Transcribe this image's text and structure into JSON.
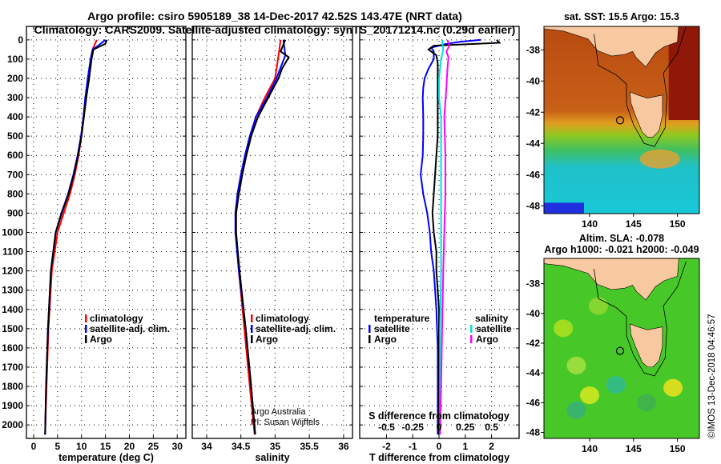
{
  "header": {
    "title_line1": "Argo profile: csiro 5905189_38 14-Dec-2017 42.52S 143.47E (NRT data)",
    "title_line2": "Climatology: CARS2009. Satellite-adjusted climatology: synTS_20171214.nc (0.29d earlier)"
  },
  "credit": {
    "line1": "Argo Australia",
    "line2": "PI: Susan Wijffels"
  },
  "watermark": "©IMOS 13-Dec-2018 04:46:57",
  "colors": {
    "climatology": "#ff0000",
    "satellite": "#0000ff",
    "argo": "#000000",
    "sal_satellite": "#00e0e0",
    "sal_argo": "#ff00ff",
    "land": "#f8c8a0"
  },
  "chart_data": [
    {
      "type": "line",
      "id": "temperature",
      "xlabel": "temperature (deg C)",
      "ylabel": "depth",
      "xlim": [
        -1.5,
        31.8
      ],
      "ylim": [
        2070,
        -70
      ],
      "xticks": [
        0,
        5,
        10,
        15,
        20,
        25,
        30
      ],
      "yticks": [
        0,
        100,
        200,
        300,
        400,
        500,
        600,
        700,
        800,
        900,
        1000,
        1100,
        1200,
        1300,
        1400,
        1500,
        1600,
        1700,
        1800,
        1900,
        2000
      ],
      "grid": true,
      "legend": {
        "placement": "lower-center",
        "entries": [
          "climatology",
          "satellite-adj. clim.",
          "Argo"
        ]
      },
      "series": [
        {
          "name": "climatology",
          "color": "#ff0000",
          "depth": [
            0,
            50,
            100,
            200,
            300,
            400,
            500,
            600,
            700,
            800,
            900,
            1000,
            1200,
            1500,
            1800,
            2050
          ],
          "values": [
            13.2,
            12.3,
            12.0,
            11.4,
            11.0,
            10.5,
            10.0,
            9.4,
            8.6,
            7.6,
            6.3,
            5.0,
            3.8,
            3.1,
            2.7,
            2.4
          ]
        },
        {
          "name": "satellite-adj. clim.",
          "color": "#0000ff",
          "depth": [
            0,
            30,
            50,
            100,
            200,
            300,
            400,
            500,
            600,
            700,
            800,
            900,
            1000,
            1200,
            1500,
            1800,
            2050
          ],
          "values": [
            15.0,
            13.5,
            12.3,
            11.9,
            11.3,
            10.8,
            10.4,
            9.9,
            9.2,
            8.3,
            7.2,
            5.8,
            4.6,
            3.6,
            3.0,
            2.6,
            2.4
          ]
        },
        {
          "name": "Argo",
          "color": "#000000",
          "depth": [
            0,
            20,
            50,
            100,
            200,
            300,
            400,
            500,
            600,
            700,
            800,
            900,
            1000,
            1200,
            1500,
            1800,
            2050
          ],
          "values": [
            15.3,
            15.0,
            12.5,
            12.1,
            11.6,
            11.0,
            10.5,
            10.0,
            9.3,
            8.4,
            7.3,
            5.9,
            4.6,
            3.6,
            3.0,
            2.6,
            2.4
          ]
        }
      ]
    },
    {
      "type": "line",
      "id": "salinity",
      "xlabel": "salinity",
      "ylabel": "depth",
      "xlim": [
        33.79,
        36.13
      ],
      "ylim": [
        2070,
        -70
      ],
      "xticks": [
        34,
        34.5,
        35,
        35.5,
        36
      ],
      "xticklabels": [
        "34",
        "34.5",
        "35",
        "35.5",
        "36"
      ],
      "grid": true,
      "legend": {
        "placement": "lower-center",
        "entries": [
          "climatology",
          "satellite-adj. clim.",
          "Argo"
        ]
      },
      "series": [
        {
          "name": "climatology",
          "color": "#ff0000",
          "depth": [
            0,
            80,
            200,
            300,
            400,
            500,
            600,
            700,
            800,
            900,
            1000,
            1200,
            1500,
            1800,
            2050
          ],
          "values": [
            35.08,
            35.05,
            35.0,
            34.85,
            34.72,
            34.65,
            34.58,
            34.52,
            34.47,
            34.43,
            34.43,
            34.47,
            34.55,
            34.63,
            34.7
          ]
        },
        {
          "name": "satellite-adj. clim.",
          "color": "#0000ff",
          "depth": [
            0,
            80,
            200,
            300,
            400,
            500,
            600,
            700,
            800,
            900,
            1000,
            1200,
            1500,
            1800,
            2050
          ],
          "values": [
            35.12,
            35.15,
            35.02,
            34.88,
            34.72,
            34.63,
            34.56,
            34.5,
            34.45,
            34.42,
            34.42,
            34.47,
            34.57,
            34.65,
            34.71
          ]
        },
        {
          "name": "Argo",
          "color": "#000000",
          "depth": [
            0,
            60,
            90,
            150,
            200,
            300,
            400,
            500,
            600,
            700,
            800,
            900,
            1000,
            1200,
            1500,
            1800,
            2050
          ],
          "values": [
            35.15,
            35.08,
            35.2,
            35.1,
            35.05,
            34.9,
            34.75,
            34.65,
            34.58,
            34.52,
            34.47,
            34.43,
            34.43,
            34.48,
            34.57,
            34.65,
            34.71
          ]
        }
      ]
    },
    {
      "type": "line",
      "id": "difference",
      "xlabel": "T difference from climatology",
      "x2label": "S difference from climatology",
      "ylabel": "depth",
      "xlim": [
        -3.02,
        3.05
      ],
      "ylim": [
        2070,
        -70
      ],
      "xticks": [
        -2,
        -1,
        0,
        1,
        2
      ],
      "x2ticks": [
        -0.5,
        -0.25,
        0,
        0.25,
        0.5
      ],
      "x2ticklabels": [
        "-0.5",
        "-0.25",
        "0",
        "0.25",
        "0.5"
      ],
      "grid": true,
      "legend": {
        "placement": "lower",
        "temperature_title": "temperature",
        "salinity_title": "salinity",
        "entries": [
          "satellite",
          "Argo",
          "satellite",
          "Argo"
        ]
      },
      "series": [
        {
          "name": "T satellite",
          "color": "#0000ff",
          "axis": "T",
          "depth": [
            0,
            10,
            20,
            40,
            60,
            100,
            150,
            200,
            250,
            300,
            400,
            500,
            600,
            700,
            800,
            900,
            1000,
            1100,
            1200,
            1300,
            1400,
            1600,
            2050
          ],
          "values": [
            1.6,
            0.8,
            0.3,
            -0.3,
            -0.2,
            -0.2,
            -0.4,
            -0.55,
            -0.6,
            -0.62,
            -0.6,
            -0.6,
            -0.62,
            -0.7,
            -0.6,
            -0.45,
            -0.35,
            -0.3,
            -0.2,
            -0.15,
            -0.1,
            -0.05,
            -0.05
          ]
        },
        {
          "name": "T Argo",
          "color": "#000000",
          "axis": "T",
          "depth": [
            0,
            15,
            30,
            50,
            80,
            120,
            200,
            300,
            400,
            500,
            600,
            700,
            800,
            900,
            1000,
            1100,
            1200,
            1300,
            1400,
            1600,
            2050
          ],
          "values": [
            2.2,
            2.3,
            -0.2,
            -0.4,
            -0.1,
            -0.05,
            -0.05,
            -0.05,
            -0.05,
            -0.05,
            -0.1,
            -0.15,
            -0.2,
            -0.25,
            -0.2,
            -0.1,
            -0.1,
            -0.05,
            0,
            0,
            0
          ]
        },
        {
          "name": "S satellite",
          "color": "#00e0e0",
          "axis": "S",
          "depth": [
            0,
            50,
            100,
            200,
            300,
            400,
            600,
            800,
            1000,
            1200,
            1500,
            2050
          ],
          "values": [
            0.03,
            0.04,
            0.02,
            0.0,
            0.0,
            0.02,
            0.02,
            0.02,
            0.02,
            0.02,
            0.01,
            0.01
          ]
        },
        {
          "name": "S Argo",
          "color": "#ff00ff",
          "axis": "S",
          "depth": [
            0,
            30,
            60,
            90,
            150,
            250,
            400,
            600,
            800,
            1000,
            1200,
            1500,
            1800,
            2050
          ],
          "values": [
            0.08,
            0.1,
            0.07,
            0.09,
            0.08,
            0.07,
            0.05,
            0.06,
            0.06,
            0.05,
            0.04,
            0.03,
            0.02,
            0.01
          ]
        }
      ]
    },
    {
      "type": "heatmap",
      "id": "sst-map",
      "title": "sat. SST: 15.5 Argo: 15.3",
      "xlim": [
        134.8,
        152.5
      ],
      "ylim": [
        -48.5,
        -36.5
      ],
      "xticks": [
        140,
        145,
        150
      ],
      "yticks": [
        -38,
        -40,
        -42,
        -44,
        -46,
        -48
      ],
      "profile_location": [
        143.47,
        -42.52
      ]
    },
    {
      "type": "heatmap",
      "id": "sla-map",
      "title": "Altim. SLA: -0.078",
      "subtitle": "Argo h1000: -0.021 h2000: -0.049",
      "xlim": [
        134.8,
        152.5
      ],
      "ylim": [
        -48.4,
        -36.3
      ],
      "xticks": [
        140,
        145,
        150
      ],
      "yticks": [
        -38,
        -40,
        -42,
        -44,
        -46,
        -48
      ],
      "profile_location": [
        143.47,
        -42.52
      ]
    }
  ]
}
